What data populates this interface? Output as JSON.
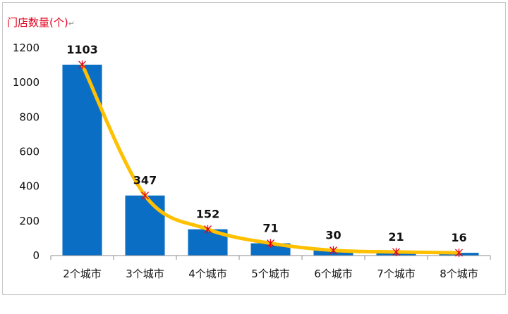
{
  "chart_data": {
    "type": "bar",
    "title": "",
    "unit_label": "门店数量(个)",
    "xlabel": "",
    "ylabel": "",
    "categories": [
      "2个城市",
      "3个城市",
      "4个城市",
      "5个城市",
      "6个城市",
      "7个城市",
      "8个城市"
    ],
    "values": [
      1103,
      347,
      152,
      71,
      30,
      21,
      16
    ],
    "ylim": [
      0,
      1200
    ],
    "yticks": [
      0,
      200,
      400,
      600,
      800,
      1000,
      1200
    ],
    "overlay_line": {
      "type": "line",
      "values": [
        1103,
        347,
        152,
        71,
        30,
        21,
        16
      ]
    },
    "colors": {
      "bar": "#0a6ec4",
      "line": "#ffc000",
      "marker": "#e0001b"
    },
    "grid": false,
    "legend": "none"
  }
}
